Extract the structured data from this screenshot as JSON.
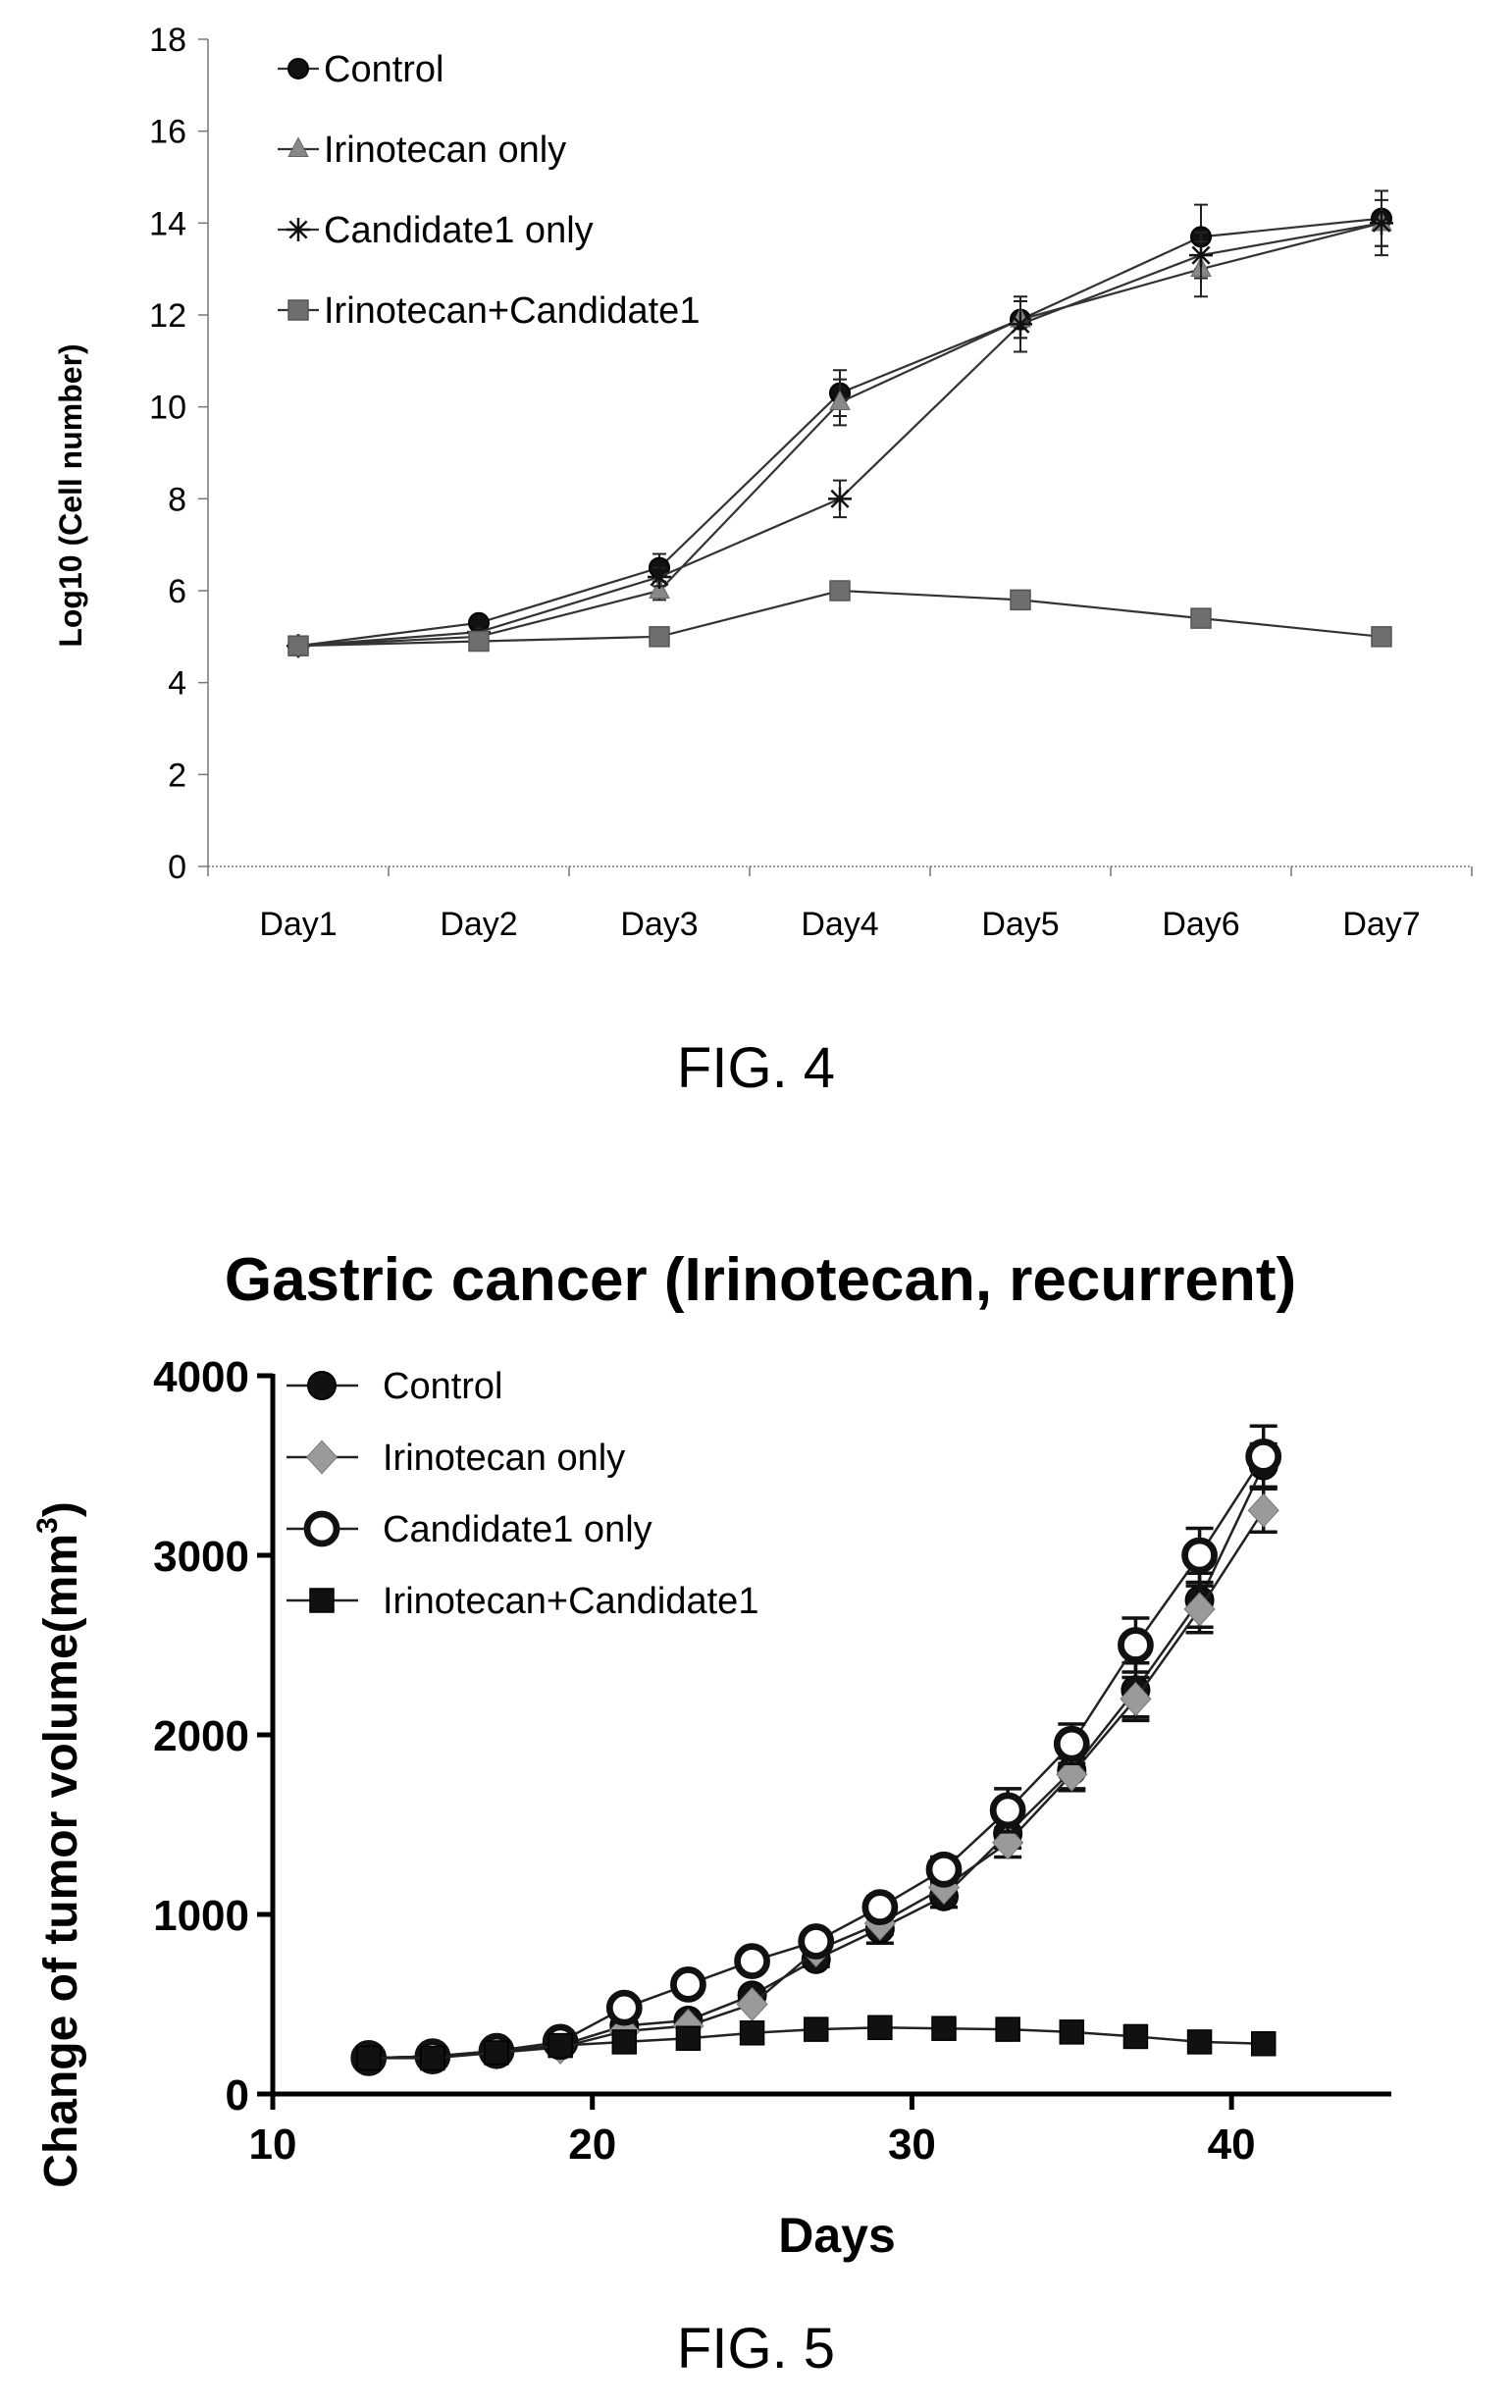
{
  "chart_data": [
    {
      "type": "line",
      "caption": "FIG. 4",
      "title": "",
      "xlabel": "",
      "ylabel": "Log10 (Cell number)",
      "categories": [
        "Day1",
        "Day2",
        "Day3",
        "Day4",
        "Day5",
        "Day6",
        "Day7"
      ],
      "ylim": [
        0,
        18
      ],
      "yticks": [
        "0",
        "2",
        "4",
        "6",
        "8",
        "10",
        "12",
        "14",
        "16",
        "18"
      ],
      "grid": false,
      "legend_position": "top-left",
      "series": [
        {
          "name": "Control",
          "marker": "circle",
          "values": [
            4.8,
            5.3,
            6.5,
            10.3,
            11.9,
            13.7,
            14.1
          ],
          "errors": [
            0,
            0,
            0.3,
            0.5,
            0.4,
            0.7,
            0.6
          ]
        },
        {
          "name": "Irinotecan only",
          "marker": "triangle",
          "values": [
            4.8,
            5.0,
            6.0,
            10.1,
            11.9,
            13.0,
            14.0
          ],
          "errors": [
            0,
            0,
            0.2,
            0.5,
            0.4,
            0.6,
            0.5
          ]
        },
        {
          "name": "Candidate1 only",
          "marker": "asterisk",
          "values": [
            4.8,
            5.1,
            6.3,
            8.0,
            11.8,
            13.3,
            14.0
          ],
          "errors": [
            0,
            0,
            0.2,
            0.4,
            0.6,
            0.5,
            0.7
          ]
        },
        {
          "name": "Irinotecan+Candidate1",
          "marker": "square",
          "values": [
            4.8,
            4.9,
            5.0,
            6.0,
            5.8,
            5.4,
            5.0
          ],
          "errors": [
            0,
            0,
            0,
            0.2,
            0.1,
            0.1,
            0.1
          ]
        }
      ]
    },
    {
      "type": "line",
      "caption": "FIG. 5",
      "title": "Gastric cancer (Irinotecan, recurrent)",
      "xlabel": "Days",
      "ylabel": "Change of tumor volume(mm",
      "ylabel_sup": "3",
      "ylabel_close": ")",
      "x": [
        13,
        15,
        17,
        19,
        21,
        23,
        25,
        27,
        29,
        31,
        33,
        35,
        37,
        39,
        41
      ],
      "xlim": [
        10,
        45
      ],
      "ylim": [
        0,
        4000
      ],
      "xticks": [
        "10",
        "20",
        "30",
        "40"
      ],
      "yticks": [
        "0",
        "1000",
        "2000",
        "3000",
        "4000"
      ],
      "grid": false,
      "legend_position": "top-left",
      "series": [
        {
          "name": "Control",
          "marker": "circle",
          "values": [
            200,
            210,
            240,
            270,
            380,
            410,
            550,
            750,
            920,
            1100,
            1450,
            1800,
            2250,
            2750,
            3500
          ],
          "errors": [
            0,
            0,
            0,
            0,
            0,
            0,
            0,
            40,
            80,
            60,
            80,
            100,
            150,
            150,
            120
          ]
        },
        {
          "name": "Irinotecan only",
          "marker": "diamond",
          "values": [
            200,
            210,
            230,
            260,
            350,
            380,
            500,
            800,
            950,
            1150,
            1400,
            1780,
            2200,
            2700,
            3250
          ],
          "errors": [
            0,
            0,
            0,
            0,
            0,
            0,
            0,
            40,
            60,
            60,
            80,
            90,
            120,
            130,
            120
          ]
        },
        {
          "name": "Candidate1 only",
          "marker": "open-circle",
          "values": [
            200,
            210,
            240,
            290,
            480,
            610,
            740,
            850,
            1040,
            1250,
            1580,
            1950,
            2500,
            3000,
            3550
          ],
          "errors": [
            0,
            0,
            0,
            0,
            40,
            30,
            40,
            40,
            60,
            70,
            120,
            110,
            150,
            150,
            170
          ]
        },
        {
          "name": "Irinotecan+Candidate1",
          "marker": "square",
          "values": [
            200,
            200,
            230,
            270,
            290,
            310,
            340,
            360,
            370,
            365,
            360,
            345,
            320,
            290,
            280
          ],
          "errors": [
            0,
            0,
            0,
            0,
            0,
            0,
            0,
            0,
            0,
            0,
            0,
            0,
            0,
            0,
            0
          ]
        }
      ]
    }
  ]
}
